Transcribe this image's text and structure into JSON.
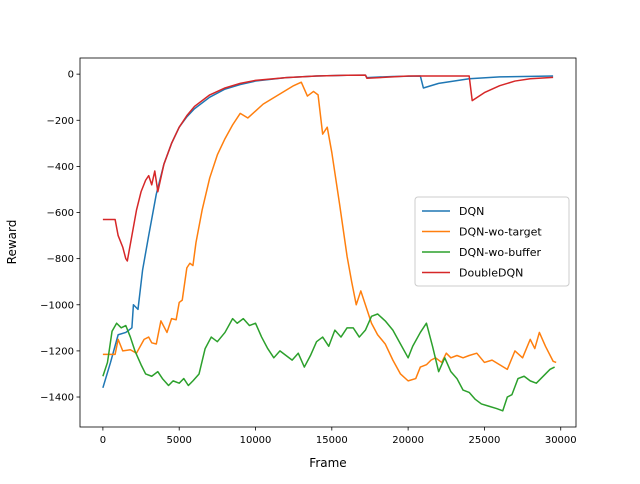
{
  "chart_data": {
    "type": "line",
    "title": "",
    "xlabel": "Frame",
    "ylabel": "Reward",
    "xlim": [
      -1500,
      31000
    ],
    "ylim": [
      -1530,
      70
    ],
    "xticks": [
      0,
      5000,
      10000,
      15000,
      20000,
      25000,
      30000
    ],
    "xtick_labels": [
      "0",
      "5000",
      "10000",
      "15000",
      "20000",
      "25000",
      "30000"
    ],
    "yticks": [
      0,
      -200,
      -400,
      -600,
      -800,
      -1000,
      -1200,
      -1400
    ],
    "ytick_labels": [
      "0",
      "−200",
      "−400",
      "−600",
      "−800",
      "−1000",
      "−1200",
      "−1400"
    ],
    "grid": false,
    "legend_position": "center-right",
    "series": [
      {
        "name": "DQN",
        "color": "#1f77b4",
        "points": [
          [
            0,
            -1360
          ],
          [
            500,
            -1250
          ],
          [
            1000,
            -1130
          ],
          [
            1500,
            -1120
          ],
          [
            1900,
            -1100
          ],
          [
            2000,
            -1000
          ],
          [
            2300,
            -1020
          ],
          [
            2600,
            -850
          ],
          [
            3000,
            -700
          ],
          [
            3500,
            -520
          ],
          [
            4000,
            -390
          ],
          [
            4500,
            -300
          ],
          [
            5000,
            -230
          ],
          [
            5500,
            -185
          ],
          [
            6000,
            -150
          ],
          [
            7000,
            -100
          ],
          [
            8000,
            -65
          ],
          [
            9000,
            -45
          ],
          [
            10000,
            -30
          ],
          [
            12000,
            -15
          ],
          [
            14000,
            -8
          ],
          [
            16000,
            -5
          ],
          [
            17200,
            -4
          ],
          [
            17300,
            -15
          ],
          [
            19000,
            -10
          ],
          [
            20800,
            -8
          ],
          [
            21000,
            -60
          ],
          [
            22000,
            -40
          ],
          [
            24000,
            -20
          ],
          [
            26000,
            -12
          ],
          [
            29500,
            -8
          ]
        ]
      },
      {
        "name": "DQN-wo-target",
        "color": "#ff7f0e",
        "points": [
          [
            0,
            -1215
          ],
          [
            500,
            -1215
          ],
          [
            800,
            -1215
          ],
          [
            1000,
            -1150
          ],
          [
            1300,
            -1200
          ],
          [
            1800,
            -1195
          ],
          [
            2200,
            -1210
          ],
          [
            2700,
            -1150
          ],
          [
            3000,
            -1140
          ],
          [
            3200,
            -1165
          ],
          [
            3500,
            -1170
          ],
          [
            3800,
            -1070
          ],
          [
            4200,
            -1120
          ],
          [
            4500,
            -1060
          ],
          [
            4800,
            -1065
          ],
          [
            5000,
            -990
          ],
          [
            5200,
            -980
          ],
          [
            5500,
            -840
          ],
          [
            5700,
            -820
          ],
          [
            5900,
            -830
          ],
          [
            6100,
            -730
          ],
          [
            6500,
            -590
          ],
          [
            7000,
            -450
          ],
          [
            7500,
            -350
          ],
          [
            8000,
            -280
          ],
          [
            8500,
            -220
          ],
          [
            9000,
            -170
          ],
          [
            9500,
            -190
          ],
          [
            10000,
            -160
          ],
          [
            10500,
            -130
          ],
          [
            11000,
            -110
          ],
          [
            11500,
            -90
          ],
          [
            12000,
            -70
          ],
          [
            12500,
            -50
          ],
          [
            13000,
            -35
          ],
          [
            13400,
            -95
          ],
          [
            13800,
            -75
          ],
          [
            14100,
            -90
          ],
          [
            14400,
            -260
          ],
          [
            14700,
            -230
          ],
          [
            15000,
            -340
          ],
          [
            15500,
            -560
          ],
          [
            16000,
            -790
          ],
          [
            16300,
            -900
          ],
          [
            16600,
            -1000
          ],
          [
            16900,
            -940
          ],
          [
            17200,
            -1000
          ],
          [
            17600,
            -1080
          ],
          [
            18000,
            -1130
          ],
          [
            18500,
            -1170
          ],
          [
            19000,
            -1240
          ],
          [
            19500,
            -1300
          ],
          [
            20000,
            -1330
          ],
          [
            20500,
            -1320
          ],
          [
            20800,
            -1270
          ],
          [
            21200,
            -1260
          ],
          [
            21500,
            -1240
          ],
          [
            21800,
            -1230
          ],
          [
            22200,
            -1250
          ],
          [
            22500,
            -1210
          ],
          [
            22800,
            -1230
          ],
          [
            23200,
            -1220
          ],
          [
            23600,
            -1230
          ],
          [
            24000,
            -1220
          ],
          [
            24500,
            -1210
          ],
          [
            25000,
            -1250
          ],
          [
            25500,
            -1240
          ],
          [
            26000,
            -1260
          ],
          [
            26500,
            -1280
          ],
          [
            27000,
            -1200
          ],
          [
            27500,
            -1230
          ],
          [
            28000,
            -1150
          ],
          [
            28300,
            -1190
          ],
          [
            28600,
            -1120
          ],
          [
            29000,
            -1180
          ],
          [
            29500,
            -1245
          ],
          [
            29700,
            -1250
          ]
        ]
      },
      {
        "name": "DQN-wo-buffer",
        "color": "#2ca02c",
        "points": [
          [
            0,
            -1310
          ],
          [
            300,
            -1250
          ],
          [
            600,
            -1115
          ],
          [
            900,
            -1080
          ],
          [
            1200,
            -1100
          ],
          [
            1500,
            -1090
          ],
          [
            1800,
            -1140
          ],
          [
            2100,
            -1200
          ],
          [
            2500,
            -1260
          ],
          [
            2800,
            -1300
          ],
          [
            3200,
            -1310
          ],
          [
            3600,
            -1290
          ],
          [
            3900,
            -1320
          ],
          [
            4300,
            -1350
          ],
          [
            4600,
            -1330
          ],
          [
            5000,
            -1340
          ],
          [
            5300,
            -1320
          ],
          [
            5600,
            -1350
          ],
          [
            5900,
            -1330
          ],
          [
            6300,
            -1300
          ],
          [
            6700,
            -1190
          ],
          [
            7100,
            -1140
          ],
          [
            7500,
            -1160
          ],
          [
            8000,
            -1120
          ],
          [
            8500,
            -1060
          ],
          [
            8800,
            -1080
          ],
          [
            9200,
            -1060
          ],
          [
            9600,
            -1090
          ],
          [
            10000,
            -1080
          ],
          [
            10400,
            -1140
          ],
          [
            10800,
            -1190
          ],
          [
            11200,
            -1230
          ],
          [
            11600,
            -1200
          ],
          [
            12000,
            -1220
          ],
          [
            12400,
            -1240
          ],
          [
            12800,
            -1210
          ],
          [
            13200,
            -1270
          ],
          [
            13600,
            -1220
          ],
          [
            14000,
            -1160
          ],
          [
            14400,
            -1140
          ],
          [
            14800,
            -1180
          ],
          [
            15200,
            -1110
          ],
          [
            15600,
            -1140
          ],
          [
            16000,
            -1100
          ],
          [
            16400,
            -1100
          ],
          [
            16800,
            -1140
          ],
          [
            17200,
            -1110
          ],
          [
            17600,
            -1050
          ],
          [
            18000,
            -1040
          ],
          [
            18500,
            -1070
          ],
          [
            19000,
            -1110
          ],
          [
            19500,
            -1170
          ],
          [
            20000,
            -1230
          ],
          [
            20300,
            -1180
          ],
          [
            20800,
            -1120
          ],
          [
            21200,
            -1080
          ],
          [
            21600,
            -1180
          ],
          [
            22000,
            -1290
          ],
          [
            22400,
            -1230
          ],
          [
            22800,
            -1290
          ],
          [
            23200,
            -1320
          ],
          [
            23600,
            -1370
          ],
          [
            24000,
            -1380
          ],
          [
            24400,
            -1410
          ],
          [
            24800,
            -1430
          ],
          [
            25300,
            -1440
          ],
          [
            25800,
            -1450
          ],
          [
            26200,
            -1460
          ],
          [
            26500,
            -1400
          ],
          [
            26800,
            -1390
          ],
          [
            27200,
            -1320
          ],
          [
            27600,
            -1310
          ],
          [
            28000,
            -1330
          ],
          [
            28400,
            -1340
          ],
          [
            28700,
            -1320
          ],
          [
            29000,
            -1300
          ],
          [
            29300,
            -1280
          ],
          [
            29600,
            -1270
          ]
        ]
      },
      {
        "name": "DoubleDQN",
        "color": "#d62728",
        "points": [
          [
            0,
            -630
          ],
          [
            500,
            -630
          ],
          [
            800,
            -630
          ],
          [
            1000,
            -700
          ],
          [
            1300,
            -750
          ],
          [
            1500,
            -800
          ],
          [
            1600,
            -810
          ],
          [
            1900,
            -700
          ],
          [
            2200,
            -590
          ],
          [
            2500,
            -510
          ],
          [
            2800,
            -460
          ],
          [
            3000,
            -440
          ],
          [
            3200,
            -480
          ],
          [
            3400,
            -420
          ],
          [
            3600,
            -510
          ],
          [
            4000,
            -390
          ],
          [
            4500,
            -300
          ],
          [
            5000,
            -230
          ],
          [
            5500,
            -180
          ],
          [
            6000,
            -140
          ],
          [
            7000,
            -90
          ],
          [
            8000,
            -60
          ],
          [
            9000,
            -40
          ],
          [
            10000,
            -27
          ],
          [
            12000,
            -15
          ],
          [
            14000,
            -8
          ],
          [
            16000,
            -5
          ],
          [
            17200,
            -4
          ],
          [
            17300,
            -18
          ],
          [
            20000,
            -8
          ],
          [
            24000,
            -8
          ],
          [
            24200,
            -115
          ],
          [
            25000,
            -80
          ],
          [
            26000,
            -50
          ],
          [
            27000,
            -30
          ],
          [
            28000,
            -20
          ],
          [
            29500,
            -14
          ]
        ]
      }
    ]
  }
}
